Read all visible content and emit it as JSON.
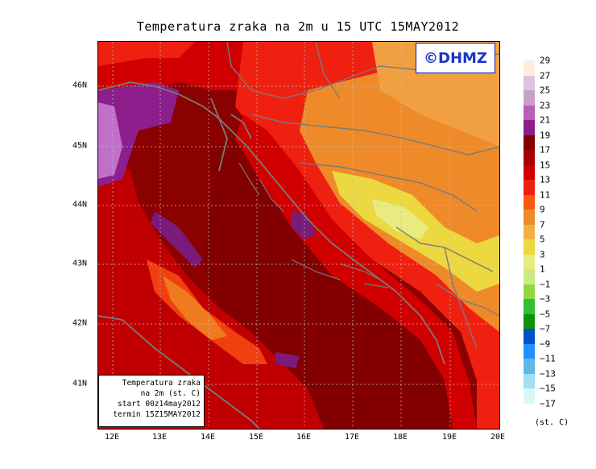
{
  "title": "Temperatura zraka na 2m u 15 UTC 15MAY2012",
  "logo": "©DHMZ",
  "info_box": {
    "lines": [
      "Temperatura zraka",
      "na 2m (st. C)",
      "start 00z14may2012",
      "termin 15Z15MAY2012"
    ]
  },
  "axes": {
    "lat_labels": [
      "46N",
      "45N",
      "44N",
      "43N",
      "42N",
      "41N"
    ],
    "lon_labels": [
      "12E",
      "13E",
      "14E",
      "15E",
      "16E",
      "17E",
      "18E",
      "19E",
      "20E"
    ]
  },
  "legend": {
    "labels": [
      "29",
      "27",
      "25",
      "23",
      "21",
      "19",
      "17",
      "15",
      "13",
      "11",
      "9",
      "7",
      "5",
      "3",
      "1",
      "−1",
      "−3",
      "−5",
      "−7",
      "−9",
      "−11",
      "−13",
      "−15",
      "−17"
    ],
    "colors": [
      "#fdeee0",
      "#dcc4dc",
      "#c8a0c8",
      "#b860b8",
      "#8c1f8c",
      "#820000",
      "#a80000",
      "#d00000",
      "#f02010",
      "#f55a10",
      "#ef8a2a",
      "#f0b040",
      "#ecd840",
      "#e8ec80",
      "#c8ec80",
      "#90d840",
      "#30c030",
      "#109010",
      "#0050c8",
      "#1e90ff",
      "#60b8e8",
      "#a0e0f0",
      "#d8f8f8"
    ],
    "units": "(st. C)"
  },
  "colors": {
    "sea": "#8b0000",
    "coast": "#808080",
    "grid": "#c0c0c0"
  }
}
